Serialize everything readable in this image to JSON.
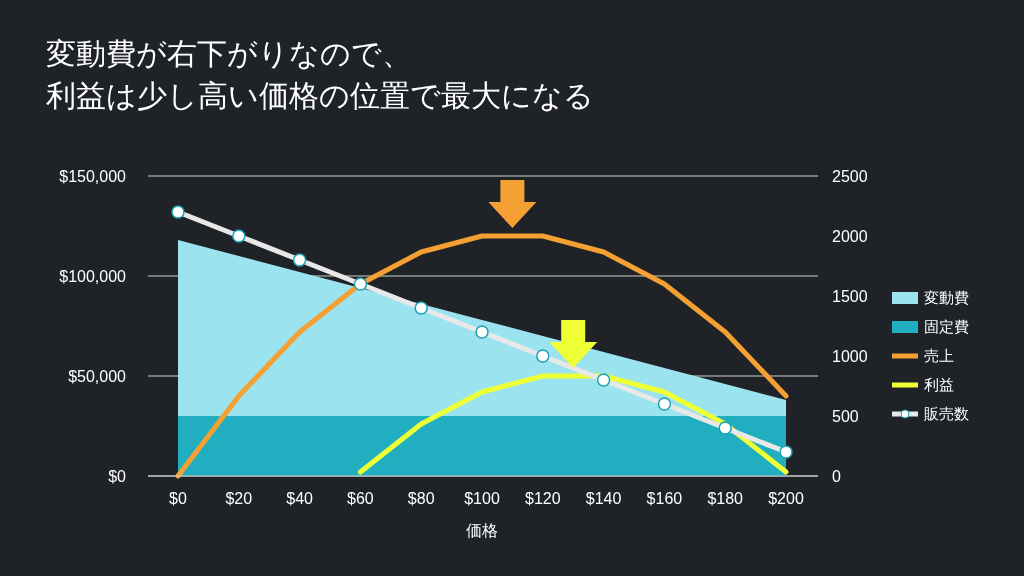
{
  "chart_data": {
    "type": "area",
    "title": "変動費が右下がりなので、",
    "subtitle": "利益は少し高い価格の位置で最大になる",
    "xlabel": "価格",
    "categories": [
      "$0",
      "$20",
      "$40",
      "$60",
      "$80",
      "$100",
      "$120",
      "$140",
      "$160",
      "$180",
      "$200"
    ],
    "stacked": true,
    "series": [
      {
        "name": "固定費",
        "color": "#20aec0",
        "values": [
          30000,
          30000,
          30000,
          30000,
          30000,
          30000,
          30000,
          30000,
          30000,
          30000,
          30000
        ]
      },
      {
        "name": "変動費",
        "color": "#9be3ee",
        "values": [
          88000,
          80000,
          72000,
          64000,
          56000,
          48000,
          40000,
          32000,
          24000,
          16000,
          8000
        ]
      },
      {
        "name": "売上",
        "type": "line",
        "color": "#f5a032",
        "values": [
          0,
          40000,
          72000,
          96000,
          112000,
          120000,
          120000,
          112000,
          96000,
          72000,
          40000
        ]
      },
      {
        "name": "利益",
        "type": "line",
        "color": "#eeff36",
        "values": [
          null,
          null,
          null,
          2000,
          26000,
          42000,
          50000,
          50000,
          42000,
          26000,
          2000
        ]
      },
      {
        "name": "販売数",
        "type": "line",
        "axis": "y2",
        "marker": "circle",
        "color": "#e8e8e8",
        "values": [
          2200,
          2000,
          1800,
          1600,
          1400,
          1200,
          1000,
          800,
          600,
          400,
          200
        ]
      }
    ],
    "ylim": [
      0,
      150000
    ],
    "yticks": [
      {
        "value": 0,
        "label": "$0"
      },
      {
        "value": 50000,
        "label": "$50,000"
      },
      {
        "value": 100000,
        "label": "$100,000"
      },
      {
        "value": 150000,
        "label": "$150,000"
      }
    ],
    "y2lim": [
      0,
      2500
    ],
    "y2ticks": [
      0,
      500,
      1000,
      1500,
      2000,
      2500
    ],
    "grid": "y",
    "legend": "right"
  }
}
